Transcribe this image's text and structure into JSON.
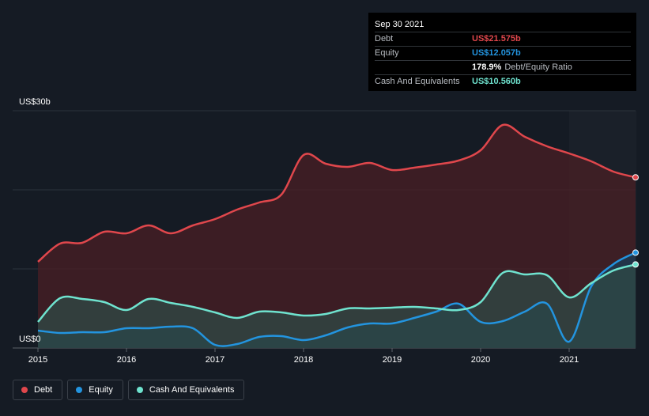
{
  "chart_data": {
    "type": "area",
    "y_top_label": "US$30b",
    "y_bottom_label": "US$0",
    "ylim": [
      0,
      30
    ],
    "xlim": [
      2015.0,
      2021.75
    ],
    "x_ticks": [
      "2015",
      "2016",
      "2017",
      "2018",
      "2019",
      "2020",
      "2021"
    ],
    "grid": true,
    "legend_position": "bottom-left",
    "series": [
      {
        "name": "Debt",
        "color": "#e0474c",
        "fill": "#4a1f24",
        "x": [
          2015.0,
          2015.25,
          2015.5,
          2015.75,
          2016.0,
          2016.25,
          2016.5,
          2016.75,
          2017.0,
          2017.25,
          2017.5,
          2017.75,
          2018.0,
          2018.25,
          2018.5,
          2018.75,
          2019.0,
          2019.25,
          2019.5,
          2019.75,
          2020.0,
          2020.25,
          2020.5,
          2020.75,
          2021.0,
          2021.25,
          2021.5,
          2021.75
        ],
        "values": [
          10.9,
          13.2,
          13.3,
          14.7,
          14.5,
          15.5,
          14.5,
          15.5,
          16.3,
          17.5,
          18.4,
          19.4,
          24.4,
          23.3,
          22.9,
          23.4,
          22.5,
          22.8,
          23.2,
          23.7,
          25.0,
          28.2,
          26.7,
          25.5,
          24.6,
          23.6,
          22.3,
          21.575
        ]
      },
      {
        "name": "Equity",
        "color": "#2394df",
        "fill": "#1a3d55",
        "x": [
          2015.0,
          2015.25,
          2015.5,
          2015.75,
          2016.0,
          2016.25,
          2016.5,
          2016.75,
          2017.0,
          2017.25,
          2017.5,
          2017.75,
          2018.0,
          2018.25,
          2018.5,
          2018.75,
          2019.0,
          2019.25,
          2019.5,
          2019.75,
          2020.0,
          2020.25,
          2020.5,
          2020.75,
          2021.0,
          2021.25,
          2021.5,
          2021.75
        ],
        "values": [
          2.2,
          1.9,
          2.0,
          2.0,
          2.5,
          2.5,
          2.7,
          2.5,
          0.4,
          0.5,
          1.4,
          1.5,
          1.0,
          1.6,
          2.6,
          3.1,
          3.1,
          3.8,
          4.6,
          5.6,
          3.3,
          3.4,
          4.6,
          5.6,
          0.8,
          7.8,
          10.6,
          12.057
        ]
      },
      {
        "name": "Cash And Equivalents",
        "color": "#6fe3cf",
        "fill": "#2f4a46",
        "x": [
          2015.0,
          2015.25,
          2015.5,
          2015.75,
          2016.0,
          2016.25,
          2016.5,
          2016.75,
          2017.0,
          2017.25,
          2017.5,
          2017.75,
          2018.0,
          2018.25,
          2018.5,
          2018.75,
          2019.0,
          2019.25,
          2019.5,
          2019.75,
          2020.0,
          2020.25,
          2020.5,
          2020.75,
          2021.0,
          2021.25,
          2021.5,
          2021.75
        ],
        "values": [
          3.3,
          6.3,
          6.2,
          5.8,
          4.8,
          6.2,
          5.7,
          5.2,
          4.5,
          3.8,
          4.6,
          4.5,
          4.1,
          4.3,
          5.0,
          5.0,
          5.1,
          5.2,
          5.0,
          4.8,
          5.8,
          9.5,
          9.3,
          9.2,
          6.4,
          8.2,
          9.8,
          10.56
        ]
      }
    ]
  },
  "tooltip": {
    "date": "Sep 30 2021",
    "rows": [
      {
        "label": "Debt",
        "value": "US$21.575b",
        "color": "#e0474c",
        "extra": ""
      },
      {
        "label": "Equity",
        "value": "US$12.057b",
        "color": "#2394df",
        "extra": ""
      },
      {
        "label": "",
        "value": "178.9%",
        "color": "#ffffff",
        "extra": "Debt/Equity Ratio"
      },
      {
        "label": "Cash And Equivalents",
        "value": "US$10.560b",
        "color": "#6fe3cf",
        "extra": ""
      }
    ]
  },
  "legend": [
    {
      "label": "Debt",
      "color": "#e0474c"
    },
    {
      "label": "Equity",
      "color": "#2394df"
    },
    {
      "label": "Cash And Equivalents",
      "color": "#6fe3cf"
    }
  ]
}
